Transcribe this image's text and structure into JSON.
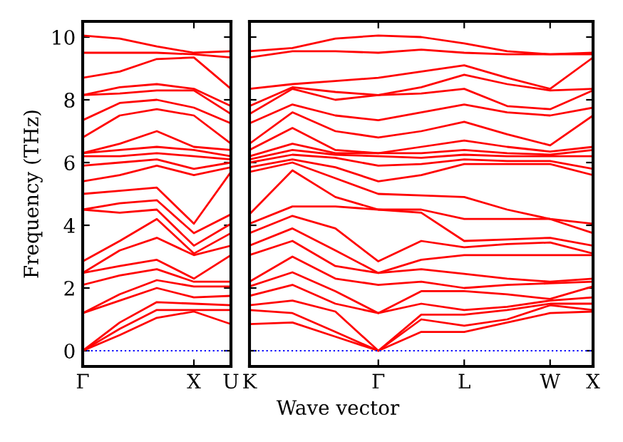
{
  "chart_data": [
    {
      "type": "line",
      "ylabel": "Frequency (THz)",
      "categories": [
        "Γ",
        null,
        null,
        "X",
        "U"
      ],
      "ylim": [
        -0.5,
        10.5
      ],
      "yticks": [
        0,
        2,
        4,
        6,
        8,
        10
      ],
      "ref_lines": [
        {
          "axis": "y",
          "value": 0,
          "color": "#0000ff",
          "line_style": "dotted"
        }
      ],
      "marker": "none",
      "line_style": "solid",
      "series": [
        {
          "color": "#ff0000",
          "values": [
            0,
            0.5,
            1.05,
            1.25,
            0.85
          ]
        },
        {
          "color": "#ff0000",
          "values": [
            0,
            0.7,
            1.3,
            1.3,
            1.3
          ]
        },
        {
          "color": "#ff0000",
          "values": [
            0,
            0.9,
            1.55,
            1.5,
            1.45
          ]
        },
        {
          "color": "#ff0000",
          "values": [
            1.2,
            1.6,
            2.0,
            1.7,
            1.75
          ]
        },
        {
          "color": "#ff0000",
          "values": [
            1.2,
            1.8,
            2.25,
            2.05,
            2.05
          ]
        },
        {
          "color": "#ff0000",
          "values": [
            2.1,
            2.4,
            2.6,
            2.2,
            2.2
          ]
        },
        {
          "color": "#ff0000",
          "values": [
            2.48,
            2.7,
            2.9,
            2.3,
            3.05
          ]
        },
        {
          "color": "#ff0000",
          "values": [
            2.48,
            3.2,
            3.6,
            3.05,
            3.35
          ]
        },
        {
          "color": "#ff0000",
          "values": [
            2.85,
            3.5,
            4.2,
            3.1,
            3.75
          ]
        },
        {
          "color": "#ff0000",
          "values": [
            4.5,
            4.4,
            4.5,
            3.35,
            4.05
          ]
        },
        {
          "color": "#ff0000",
          "values": [
            4.5,
            4.7,
            4.8,
            3.75,
            4.35
          ]
        },
        {
          "color": "#ff0000",
          "values": [
            5.0,
            5.1,
            5.2,
            4.05,
            5.7
          ]
        },
        {
          "color": "#ff0000",
          "values": [
            5.4,
            5.6,
            5.9,
            5.6,
            5.85
          ]
        },
        {
          "color": "#ff0000",
          "values": [
            5.9,
            6.0,
            6.1,
            5.8,
            6.0
          ]
        },
        {
          "color": "#ff0000",
          "values": [
            6.2,
            6.2,
            6.3,
            6.2,
            6.1
          ]
        },
        {
          "color": "#ff0000",
          "values": [
            6.3,
            6.4,
            6.5,
            6.4,
            6.2
          ]
        },
        {
          "color": "#ff0000",
          "values": [
            6.3,
            6.6,
            7.0,
            6.5,
            6.4
          ]
        },
        {
          "color": "#ff0000",
          "values": [
            6.8,
            7.5,
            7.7,
            7.5,
            6.6
          ]
        },
        {
          "color": "#ff0000",
          "values": [
            7.35,
            7.9,
            8.0,
            7.75,
            7.25
          ]
        },
        {
          "color": "#ff0000",
          "values": [
            8.15,
            8.2,
            8.3,
            8.3,
            7.55
          ]
        },
        {
          "color": "#ff0000",
          "values": [
            8.15,
            8.4,
            8.5,
            8.35,
            7.8
          ]
        },
        {
          "color": "#ff0000",
          "values": [
            8.7,
            8.9,
            9.3,
            9.35,
            8.35
          ]
        },
        {
          "color": "#ff0000",
          "values": [
            9.5,
            9.5,
            9.5,
            9.45,
            9.35
          ]
        },
        {
          "color": "#ff0000",
          "values": [
            10.05,
            9.95,
            9.7,
            9.5,
            9.55
          ]
        }
      ]
    },
    {
      "type": "line",
      "xlabel": "Wave vector",
      "categories": [
        "K",
        null,
        null,
        "Γ",
        null,
        "L",
        null,
        "W",
        "X"
      ],
      "ylim": [
        -0.5,
        10.5
      ],
      "yticks": [
        0,
        2,
        4,
        6,
        8,
        10
      ],
      "tick_labels": "x",
      "ref_lines": [
        {
          "axis": "y",
          "value": 0,
          "color": "#0000ff",
          "line_style": "dotted"
        }
      ],
      "marker": "none",
      "line_style": "solid",
      "series": [
        {
          "color": "#ff0000",
          "values": [
            0.85,
            0.9,
            0.45,
            0,
            0.6,
            0.6,
            0.9,
            1.2,
            1.25
          ]
        },
        {
          "color": "#ff0000",
          "values": [
            1.3,
            1.2,
            0.6,
            0,
            1.0,
            0.8,
            1.0,
            1.45,
            1.3
          ]
        },
        {
          "color": "#ff0000",
          "values": [
            1.45,
            1.6,
            1.25,
            0,
            1.15,
            1.15,
            1.3,
            1.5,
            1.5
          ]
        },
        {
          "color": "#ff0000",
          "values": [
            1.75,
            2.1,
            1.5,
            1.2,
            1.5,
            1.3,
            1.4,
            1.6,
            1.7
          ]
        },
        {
          "color": "#ff0000",
          "values": [
            2.05,
            2.5,
            1.9,
            1.2,
            1.9,
            1.9,
            1.8,
            1.65,
            2.05
          ]
        },
        {
          "color": "#ff0000",
          "values": [
            2.2,
            3.0,
            2.3,
            2.1,
            2.2,
            2.0,
            2.1,
            2.15,
            2.2
          ]
        },
        {
          "color": "#ff0000",
          "values": [
            3.05,
            3.5,
            2.7,
            2.48,
            2.6,
            2.45,
            2.3,
            2.2,
            2.3
          ]
        },
        {
          "color": "#ff0000",
          "values": [
            3.35,
            3.9,
            3.2,
            2.48,
            2.9,
            3.05,
            3.05,
            3.05,
            3.05
          ]
        },
        {
          "color": "#ff0000",
          "values": [
            3.75,
            4.3,
            3.9,
            2.85,
            3.5,
            3.3,
            3.4,
            3.45,
            3.1
          ]
        },
        {
          "color": "#ff0000",
          "values": [
            4.05,
            4.6,
            4.6,
            4.5,
            4.4,
            3.5,
            3.55,
            3.6,
            3.35
          ]
        },
        {
          "color": "#ff0000",
          "values": [
            4.35,
            5.75,
            4.9,
            4.5,
            4.5,
            4.2,
            4.2,
            4.2,
            3.75
          ]
        },
        {
          "color": "#ff0000",
          "values": [
            5.7,
            6.0,
            5.5,
            5.0,
            4.95,
            4.9,
            4.5,
            4.2,
            4.05
          ]
        },
        {
          "color": "#ff0000",
          "values": [
            5.85,
            6.1,
            5.85,
            5.4,
            5.6,
            5.95,
            5.95,
            5.95,
            5.6
          ]
        },
        {
          "color": "#ff0000",
          "values": [
            6.0,
            6.25,
            6.15,
            5.9,
            5.95,
            6.1,
            6.05,
            6.05,
            5.8
          ]
        },
        {
          "color": "#ff0000",
          "values": [
            6.1,
            6.4,
            6.25,
            6.2,
            6.15,
            6.25,
            6.2,
            6.2,
            6.2
          ]
        },
        {
          "color": "#ff0000",
          "values": [
            6.2,
            6.6,
            6.3,
            6.3,
            6.3,
            6.4,
            6.3,
            6.25,
            6.4
          ]
        },
        {
          "color": "#ff0000",
          "values": [
            6.4,
            7.1,
            6.4,
            6.3,
            6.5,
            6.7,
            6.5,
            6.35,
            6.5
          ]
        },
        {
          "color": "#ff0000",
          "values": [
            6.6,
            7.6,
            7.0,
            6.8,
            7.0,
            7.3,
            6.9,
            6.55,
            7.5
          ]
        },
        {
          "color": "#ff0000",
          "values": [
            7.25,
            7.85,
            7.5,
            7.35,
            7.6,
            7.85,
            7.6,
            7.5,
            7.75
          ]
        },
        {
          "color": "#ff0000",
          "values": [
            7.55,
            8.35,
            8.0,
            8.15,
            8.2,
            8.35,
            7.8,
            7.7,
            8.3
          ]
        },
        {
          "color": "#ff0000",
          "values": [
            7.8,
            8.4,
            8.25,
            8.15,
            8.4,
            8.8,
            8.5,
            8.3,
            8.35
          ]
        },
        {
          "color": "#ff0000",
          "values": [
            8.35,
            8.5,
            8.6,
            8.7,
            8.9,
            9.1,
            8.7,
            8.35,
            9.35
          ]
        },
        {
          "color": "#ff0000",
          "values": [
            9.35,
            9.55,
            9.55,
            9.5,
            9.6,
            9.5,
            9.45,
            9.45,
            9.45
          ]
        },
        {
          "color": "#ff0000",
          "values": [
            9.55,
            9.65,
            9.95,
            10.05,
            10.0,
            9.8,
            9.55,
            9.45,
            9.5
          ]
        }
      ]
    }
  ]
}
